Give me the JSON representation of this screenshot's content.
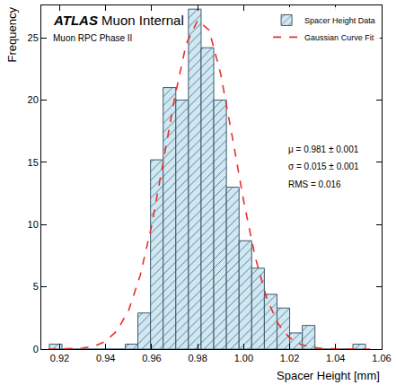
{
  "chart_data": {
    "type": "histogram",
    "annotations": [
      "ATLAS Muon Internal",
      "Muon RPC Phase II",
      "μ = 0.981 ± 0.001",
      "σ = 0.015 ± 0.001",
      "RMS = 0.016"
    ],
    "x_label": "Spacer Height [mm]",
    "y_label": "Frequency",
    "bins": [
      0.9155,
      0.921,
      0.9265,
      0.932,
      0.9375,
      0.943,
      0.9485,
      0.954,
      0.9595,
      0.965,
      0.9705,
      0.976,
      0.9815,
      0.987,
      0.9925,
      0.998,
      1.0035,
      1.009,
      1.0145,
      1.02,
      1.0255,
      1.031,
      1.0365,
      1.042,
      1.0475,
      1.053
    ],
    "series": [
      {
        "name": "Spacer Height Data",
        "type": "bar",
        "color": "#cfe8f1",
        "marker": "hatch",
        "values": [
          0.4,
          0,
          0,
          0,
          0,
          0,
          0.4,
          2.9,
          15.2,
          21,
          20,
          27.3,
          24.2,
          20,
          13,
          8.7,
          6.5,
          4.4,
          3.3,
          1.3,
          1.9,
          0,
          0,
          0,
          0.4
        ]
      },
      {
        "name": "Gaussian Curve Fit",
        "type": "line",
        "color": "#e8302a",
        "line_style": "dash",
        "x": [
          0.915,
          0.92,
          0.925,
          0.93,
          0.935,
          0.94,
          0.945,
          0.95,
          0.955,
          0.96,
          0.965,
          0.97,
          0.975,
          0.98,
          0.985,
          0.99,
          0.995,
          1.0,
          1.005,
          1.01,
          1.015,
          1.02,
          1.025,
          1.03,
          1.035,
          1.04,
          1.045,
          1.05,
          1.055
        ],
        "values": [
          0,
          0.01,
          0.03,
          0.08,
          0.24,
          0.63,
          1.49,
          3.13,
          5.9,
          9.94,
          15.0,
          20.2,
          24.5,
          26.4,
          25.6,
          22.1,
          17.1,
          11.9,
          7.4,
          4.1,
          2.03,
          0.9,
          0.36,
          0.13,
          0.04,
          0.01,
          0,
          0,
          0
        ]
      }
    ],
    "xlim": [
      0.912,
      1.06
    ],
    "xticks": [
      0.92,
      0.94,
      0.96,
      0.98,
      {
        "value": 1,
        "label": "1.00"
      },
      1.02,
      1.04,
      1.06
    ],
    "ylim": [
      0,
      27.6
    ],
    "yticks": [
      0,
      5,
      10,
      15,
      20,
      25
    ],
    "legend": "upper right",
    "grid": false
  }
}
